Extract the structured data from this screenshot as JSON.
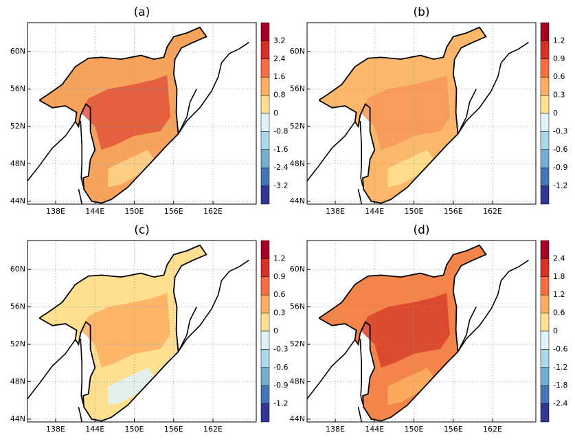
{
  "panels": [
    {
      "label": "(a)",
      "sea_color": "#f7a35c",
      "patch_colors": [
        "#e0553a",
        "#fdd28a"
      ],
      "colorbar": {
        "ticks": [
          3.2,
          2.4,
          1.6,
          0.8,
          0,
          -0.8,
          -1.6,
          -2.4,
          -3.2
        ],
        "colors": [
          "#a50026",
          "#d73027",
          "#f46d43",
          "#fdae61",
          "#fee090",
          "#e0f3f8",
          "#abd9e9",
          "#74add1",
          "#4575b4",
          "#313695"
        ]
      }
    },
    {
      "label": "(b)",
      "sea_color": "#fbb86a",
      "patch_colors": [
        "#f6965a",
        "#fee090"
      ],
      "colorbar": {
        "ticks": [
          1.2,
          0.9,
          0.6,
          0.3,
          0,
          -0.3,
          -0.6,
          -0.9,
          -1.2
        ],
        "colors": [
          "#a50026",
          "#d73027",
          "#f46d43",
          "#fdae61",
          "#fee090",
          "#e0f3f8",
          "#abd9e9",
          "#74add1",
          "#4575b4",
          "#313695"
        ]
      }
    },
    {
      "label": "(c)",
      "sea_color": "#fee090",
      "patch_colors": [
        "#fdae61",
        "#e0f3f8"
      ],
      "colorbar": {
        "ticks": [
          1.2,
          0.9,
          0.6,
          0.3,
          0,
          -0.3,
          -0.6,
          -0.9,
          -1.2
        ],
        "colors": [
          "#a50026",
          "#d73027",
          "#f46d43",
          "#fdae61",
          "#fee090",
          "#e0f3f8",
          "#abd9e9",
          "#74add1",
          "#4575b4",
          "#313695"
        ]
      }
    },
    {
      "label": "(d)",
      "sea_color": "#f4854a",
      "patch_colors": [
        "#d73f2c",
        "#fdae61"
      ],
      "colorbar": {
        "ticks": [
          2.4,
          1.8,
          1.2,
          0.6,
          0,
          -0.6,
          -1.2,
          -1.8,
          -2.4
        ],
        "colors": [
          "#a50026",
          "#d73027",
          "#f46d43",
          "#fdae61",
          "#fee090",
          "#e0f3f8",
          "#abd9e9",
          "#74add1",
          "#4575b4",
          "#313695"
        ]
      }
    }
  ],
  "lon_range": [
    133.7,
    168.6
  ],
  "lat_range": [
    43.7,
    63.1
  ],
  "lon_ticks": [
    {
      "value": 138,
      "label": "138E"
    },
    {
      "value": 144,
      "label": "144E"
    },
    {
      "value": 150,
      "label": "150E"
    },
    {
      "value": 156,
      "label": "156E"
    },
    {
      "value": 162,
      "label": "162E"
    }
  ],
  "lat_ticks": [
    {
      "value": 60,
      "label": "60N"
    },
    {
      "value": 56,
      "label": "56N"
    },
    {
      "value": 52,
      "label": "52N"
    },
    {
      "value": 48,
      "label": "48N"
    },
    {
      "value": 44,
      "label": "44N"
    }
  ]
}
